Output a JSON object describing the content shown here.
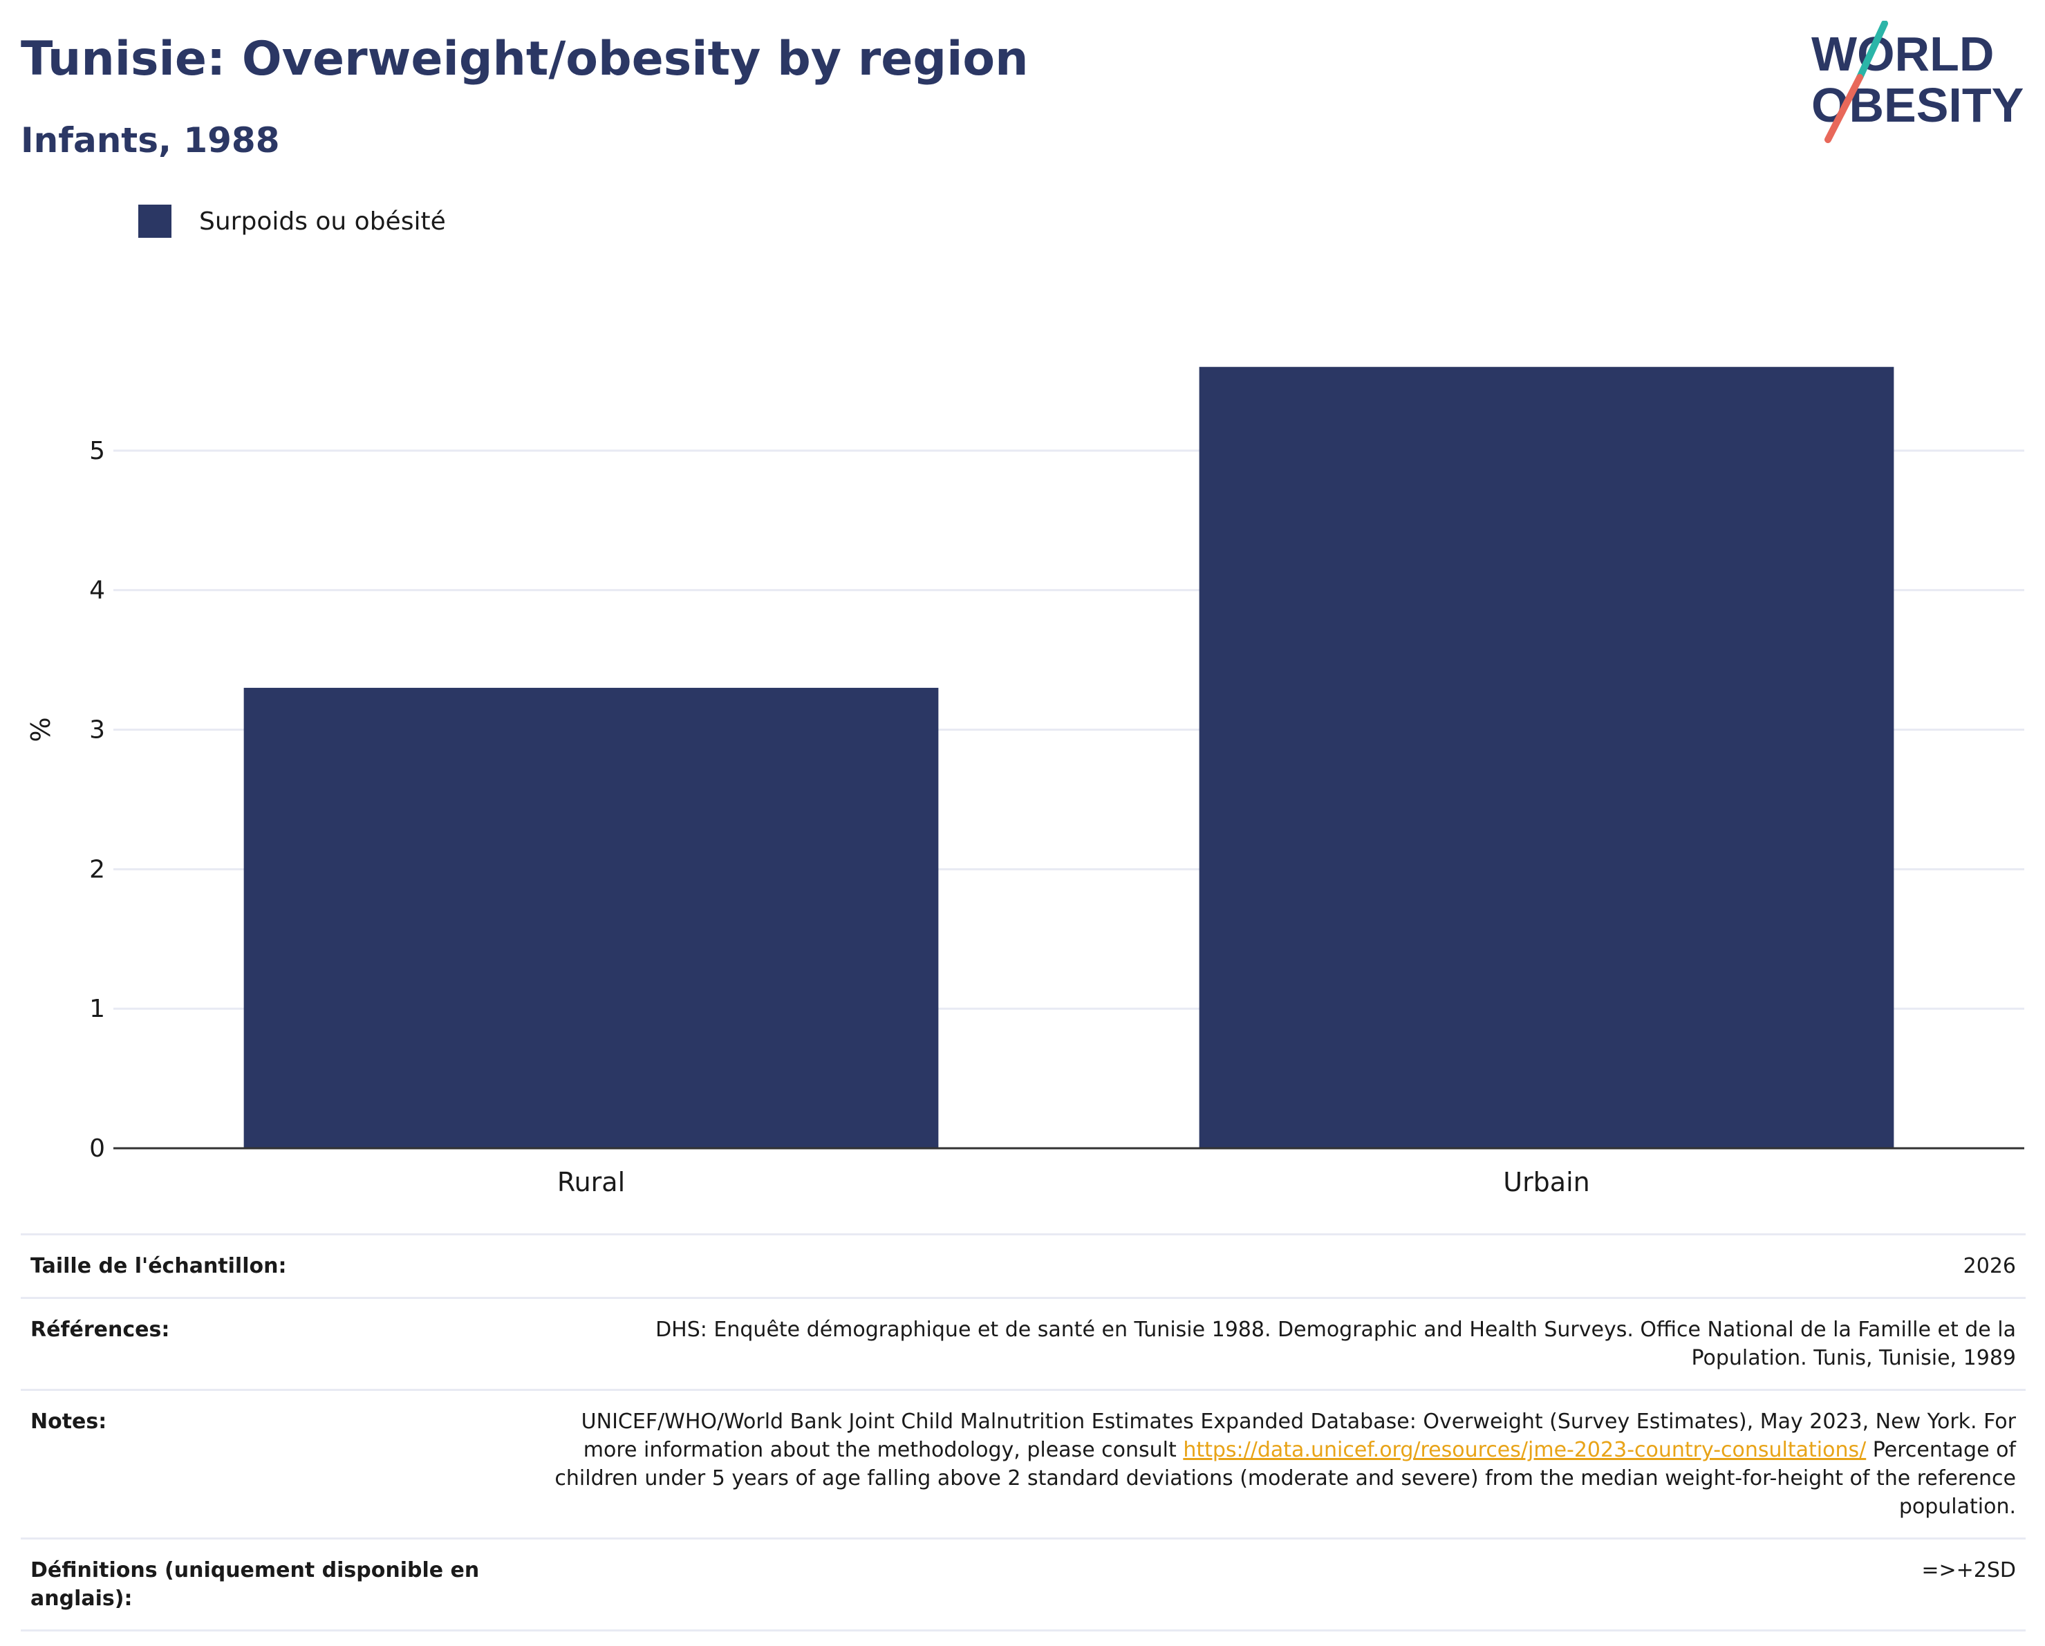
{
  "header": {
    "title": "Tunisie: Overweight/obesity by region",
    "subtitle": "Infants, 1988"
  },
  "logo": {
    "line1": "WORLD",
    "line2": "OBESITY",
    "text_color": "#2b3764",
    "slash_top_color": "#2bb5a8",
    "slash_bottom_color": "#e8685a"
  },
  "legend": {
    "label": "Surpoids ou obésité",
    "color": "#2b3764"
  },
  "chart_data": {
    "type": "bar",
    "categories": [
      "Rural",
      "Urbain"
    ],
    "series": [
      {
        "name": "Surpoids ou obésité",
        "values": [
          3.3,
          5.6
        ],
        "color": "#2b3764"
      }
    ],
    "ylabel": "%",
    "xlabel": "",
    "ylim": [
      0,
      6.0
    ],
    "yticks": [
      0,
      1,
      2,
      3,
      4,
      5
    ],
    "grid": true,
    "legend_position": "top-left"
  },
  "info": {
    "sample_label": "Taille de l'échantillon:",
    "sample_value": "2026",
    "references_label": "Références:",
    "references_value": "DHS: Enquête démographique et de santé en Tunisie 1988. Demographic and Health Surveys. Office National de la Famille et de la Population. Tunis, Tunisie, 1989",
    "notes_label": "Notes:",
    "notes_before_link": "UNICEF/WHO/World Bank Joint Child Malnutrition Estimates Expanded Database: Overweight (Survey Estimates), May 2023, New York. For more information about the methodology, please consult ",
    "notes_link": "https://data.unicef.org/resources/jme-2023-country-consultations/",
    "notes_after_link": " Percentage of children under 5 years of age falling above 2 standard deviations (moderate and severe) from the median weight-for-height of the reference population.",
    "definitions_label": "Définitions (uniquement disponible en anglais):",
    "definitions_value": "=>+2SD"
  }
}
